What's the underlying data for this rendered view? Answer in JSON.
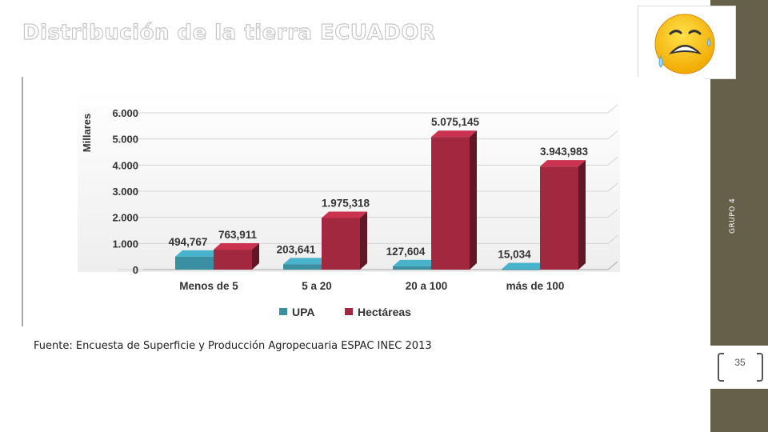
{
  "slide": {
    "title": "Distribución de la tierra ECUADOR",
    "sidebar_label": "GRUPO 4",
    "page_number": "35",
    "source": "Fuente: Encuesta de Superficie y Producción Agropecuaria ESPAC INEC 2013",
    "emoji": "crying-face-icon"
  },
  "chart_data": {
    "type": "bar",
    "title": "",
    "xlabel": "",
    "ylabel": "Millares",
    "ylim": [
      0,
      6000
    ],
    "yticks": [
      "0",
      "1.000",
      "2.000",
      "3.000",
      "4.000",
      "5.000",
      "6.000"
    ],
    "ytick_values": [
      0,
      1000,
      2000,
      3000,
      4000,
      5000,
      6000
    ],
    "categories": [
      "Menos de 5",
      "5 a 20",
      "20 a 100",
      "más de 100"
    ],
    "series": [
      {
        "name": "UPA",
        "color": "#3a8fa3",
        "values": [
          494.767,
          203.641,
          127.604,
          15.034
        ],
        "labels": [
          "494,767",
          "203,641",
          "127,604",
          "15,034"
        ]
      },
      {
        "name": "Hectáreas",
        "color": "#a2283f",
        "values": [
          763.911,
          1975.318,
          5075.145,
          3943.983
        ],
        "labels": [
          "763,911",
          "1.975,318",
          "5.075,145",
          "3.943,983"
        ]
      }
    ],
    "legend_position": "bottom",
    "grid": true
  }
}
